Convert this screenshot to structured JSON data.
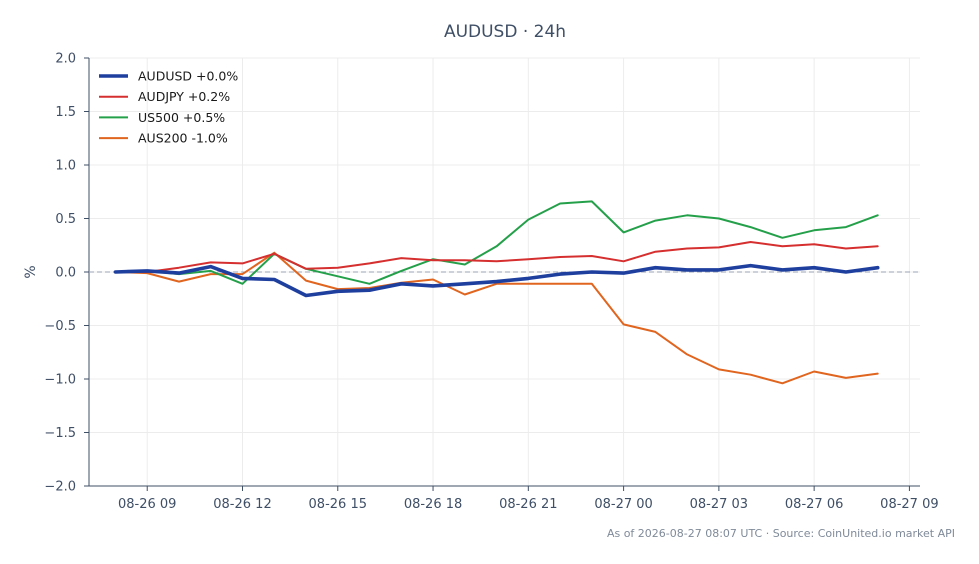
{
  "chart_data": {
    "type": "line",
    "title": "AUDUSD · 24h",
    "ylabel": "%",
    "xlabel": "",
    "ylim": [
      -2.0,
      2.0
    ],
    "yticks": [
      {
        "v": -2.0,
        "label": "−2.0"
      },
      {
        "v": -1.5,
        "label": "−1.5"
      },
      {
        "v": -1.0,
        "label": "−1.0"
      },
      {
        "v": -0.5,
        "label": "−0.5"
      },
      {
        "v": 0.0,
        "label": "0.0"
      },
      {
        "v": 0.5,
        "label": "0.5"
      },
      {
        "v": 1.0,
        "label": "1.0"
      },
      {
        "v": 1.5,
        "label": "1.5"
      },
      {
        "v": 2.0,
        "label": "2.0"
      }
    ],
    "xlim": [
      "2026-08-26 07:10",
      "2026-08-27 09:20"
    ],
    "xticks": [
      {
        "t": "2026-08-26 09:00",
        "label": "08-26 09"
      },
      {
        "t": "2026-08-26 12:00",
        "label": "08-26 12"
      },
      {
        "t": "2026-08-26 15:00",
        "label": "08-26 15"
      },
      {
        "t": "2026-08-26 18:00",
        "label": "08-26 18"
      },
      {
        "t": "2026-08-26 21:00",
        "label": "08-26 21"
      },
      {
        "t": "2026-08-27 00:00",
        "label": "08-27 00"
      },
      {
        "t": "2026-08-27 03:00",
        "label": "08-27 03"
      },
      {
        "t": "2026-08-27 06:00",
        "label": "08-27 06"
      },
      {
        "t": "2026-08-27 09:00",
        "label": "08-27 09"
      }
    ],
    "x": [
      "2026-08-26 08:00",
      "2026-08-26 09:00",
      "2026-08-26 10:00",
      "2026-08-26 11:00",
      "2026-08-26 12:00",
      "2026-08-26 13:00",
      "2026-08-26 14:00",
      "2026-08-26 15:00",
      "2026-08-26 16:00",
      "2026-08-26 17:00",
      "2026-08-26 18:00",
      "2026-08-26 19:00",
      "2026-08-26 20:00",
      "2026-08-26 21:00",
      "2026-08-26 22:00",
      "2026-08-26 23:00",
      "2026-08-27 00:00",
      "2026-08-27 01:00",
      "2026-08-27 02:00",
      "2026-08-27 03:00",
      "2026-08-27 04:00",
      "2026-08-27 05:00",
      "2026-08-27 06:00",
      "2026-08-27 07:00",
      "2026-08-27 08:00"
    ],
    "series": [
      {
        "name": "AUDUSD +0.0%",
        "color": "#1f3f9f",
        "width": 3.6,
        "values": [
          0.0,
          0.01,
          -0.01,
          0.05,
          -0.06,
          -0.07,
          -0.22,
          -0.18,
          -0.17,
          -0.11,
          -0.13,
          -0.11,
          -0.09,
          -0.06,
          -0.02,
          0.0,
          -0.01,
          0.04,
          0.02,
          0.02,
          0.06,
          0.02,
          0.04,
          0.0,
          0.04
        ]
      },
      {
        "name": "AUDJPY +0.2%",
        "color": "#d62f2f",
        "width": 2,
        "values": [
          0.0,
          0.0,
          0.04,
          0.09,
          0.08,
          0.17,
          0.03,
          0.04,
          0.08,
          0.13,
          0.11,
          0.11,
          0.1,
          0.12,
          0.14,
          0.15,
          0.1,
          0.19,
          0.22,
          0.23,
          0.28,
          0.24,
          0.26,
          0.22,
          0.24
        ]
      },
      {
        "name": "US500 +0.5%",
        "color": "#25a04a",
        "width": 2,
        "values": [
          0.0,
          0.01,
          -0.02,
          0.01,
          -0.11,
          0.17,
          0.03,
          -0.04,
          -0.11,
          0.01,
          0.12,
          0.07,
          0.24,
          0.49,
          0.64,
          0.66,
          0.37,
          0.48,
          0.53,
          0.5,
          0.42,
          0.32,
          0.39,
          0.42,
          0.53
        ]
      },
      {
        "name": "AUS200 -1.0%",
        "color": "#e0651f",
        "width": 2,
        "values": [
          0.0,
          -0.01,
          -0.09,
          -0.02,
          -0.02,
          0.18,
          -0.08,
          -0.16,
          -0.15,
          -0.1,
          -0.07,
          -0.21,
          -0.11,
          -0.11,
          -0.11,
          -0.11,
          -0.49,
          -0.56,
          -0.77,
          -0.91,
          -0.96,
          -1.04,
          -0.93,
          -0.99,
          -0.95
        ]
      }
    ],
    "zero_line": true,
    "grid": true,
    "legend": "top-left",
    "footer": "As of 2026-08-27 08:07 UTC · Source: CoinUnited.io market API"
  }
}
